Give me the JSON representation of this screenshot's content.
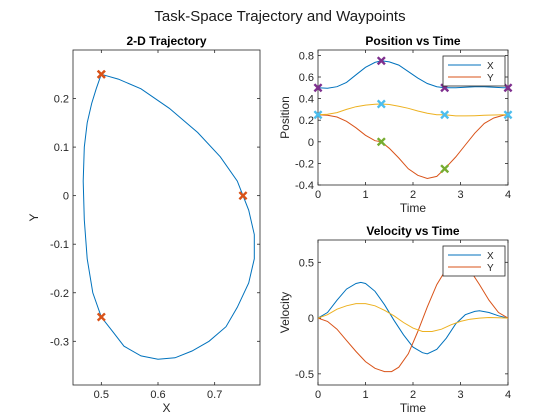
{
  "figure": {
    "title": "Task-Space Trajectory and Waypoints"
  },
  "colors": {
    "blue": "#0072BD",
    "orange": "#D95319",
    "yellow": "#EDB120",
    "purple": "#7E2F8E",
    "green": "#77AC30",
    "cyan": "#4DBEEE",
    "axis": "#262626",
    "text": "#262626"
  },
  "chart_data": [
    {
      "type": "line",
      "title": "2-D Trajectory",
      "xlabel": "X",
      "ylabel": "Y",
      "xlim": [
        0.45,
        0.78
      ],
      "ylim": [
        -0.39,
        0.3
      ],
      "xticks": [
        0.5,
        0.6,
        0.7
      ],
      "yticks": [
        -0.3,
        -0.2,
        -0.1,
        0,
        0.1,
        0.2
      ],
      "xticklabels": [
        "0.5",
        "0.6",
        "0.7"
      ],
      "yticklabels": [
        "-0.3",
        "-0.2",
        "-0.1",
        "0",
        "0.1",
        "0.2"
      ],
      "series": [
        {
          "color": "#0072BD",
          "x": [
            0.5,
            0.53,
            0.57,
            0.62,
            0.67,
            0.71,
            0.74,
            0.75,
            0.76,
            0.77,
            0.77,
            0.76,
            0.74,
            0.72,
            0.69,
            0.66,
            0.63,
            0.6,
            0.57,
            0.54,
            0.52,
            0.5,
            0.485,
            0.475,
            0.47,
            0.468,
            0.47,
            0.475,
            0.483,
            0.491,
            0.497,
            0.5
          ],
          "y": [
            0.25,
            0.24,
            0.22,
            0.18,
            0.13,
            0.08,
            0.03,
            0.0,
            -0.03,
            -0.08,
            -0.13,
            -0.18,
            -0.23,
            -0.27,
            -0.3,
            -0.32,
            -0.334,
            -0.337,
            -0.33,
            -0.31,
            -0.28,
            -0.25,
            -0.2,
            -0.13,
            -0.05,
            0.03,
            0.1,
            0.15,
            0.19,
            0.22,
            0.24,
            0.25
          ]
        }
      ],
      "waypoints": {
        "color": "#D95319",
        "x": [
          0.5,
          0.75,
          0.5,
          0.5
        ],
        "y": [
          0.25,
          0.0,
          -0.25,
          0.25
        ]
      }
    },
    {
      "type": "line",
      "title": "Position vs Time",
      "xlabel": "Time",
      "ylabel": "Position",
      "xlim": [
        0,
        4
      ],
      "ylim": [
        -0.4,
        0.85
      ],
      "xticks": [
        0,
        1,
        2,
        3,
        4
      ],
      "yticks": [
        -0.4,
        -0.2,
        0,
        0.2,
        0.4,
        0.6,
        0.8
      ],
      "xticklabels": [
        "0",
        "1",
        "2",
        "3",
        "4"
      ],
      "yticklabels": [
        "-0.4",
        "-0.2",
        "0",
        "0.2",
        "0.4",
        "0.6",
        "0.8"
      ],
      "legend": {
        "position": "top-right",
        "entries": [
          "X",
          "Y"
        ]
      },
      "series": [
        {
          "name": "X",
          "color": "#0072BD",
          "x": [
            0,
            0.2,
            0.4,
            0.6,
            0.8,
            1.0,
            1.2,
            1.333,
            1.5,
            1.7,
            1.9,
            2.1,
            2.3,
            2.5,
            2.667,
            2.9,
            3.1,
            3.3,
            3.5,
            3.7,
            3.9,
            4.0
          ],
          "y": [
            0.5,
            0.495,
            0.51,
            0.55,
            0.62,
            0.69,
            0.735,
            0.75,
            0.74,
            0.71,
            0.65,
            0.59,
            0.54,
            0.51,
            0.5,
            0.5,
            0.505,
            0.51,
            0.51,
            0.505,
            0.5,
            0.5
          ]
        },
        {
          "name": "Y",
          "color": "#D95319",
          "x": [
            0,
            0.2,
            0.4,
            0.6,
            0.8,
            1.0,
            1.2,
            1.333,
            1.5,
            1.7,
            1.9,
            2.1,
            2.3,
            2.5,
            2.667,
            2.9,
            3.1,
            3.3,
            3.5,
            3.7,
            3.9,
            4.0
          ],
          "y": [
            0.25,
            0.245,
            0.23,
            0.19,
            0.13,
            0.06,
            0.01,
            0.0,
            -0.06,
            -0.15,
            -0.25,
            -0.31,
            -0.34,
            -0.32,
            -0.25,
            -0.14,
            -0.03,
            0.08,
            0.17,
            0.22,
            0.245,
            0.25
          ]
        },
        {
          "color": "#EDB120",
          "x": [
            0,
            0.2,
            0.4,
            0.6,
            0.8,
            1.0,
            1.2,
            1.333,
            1.5,
            1.7,
            1.9,
            2.1,
            2.3,
            2.5,
            2.667,
            2.9,
            3.1,
            3.3,
            3.5,
            3.7,
            3.9,
            4.0
          ],
          "y": [
            0.25,
            0.255,
            0.27,
            0.3,
            0.325,
            0.34,
            0.348,
            0.35,
            0.345,
            0.33,
            0.31,
            0.285,
            0.265,
            0.25,
            0.25,
            0.24,
            0.24,
            0.242,
            0.245,
            0.248,
            0.25,
            0.25
          ]
        }
      ],
      "waypoints": [
        {
          "color": "#7E2F8E",
          "x": [
            0,
            1.333,
            2.667,
            4
          ],
          "y": [
            0.5,
            0.75,
            0.5,
            0.5
          ]
        },
        {
          "color": "#77AC30",
          "x": [
            1.333,
            2.667
          ],
          "y": [
            0.0,
            -0.25
          ]
        },
        {
          "color": "#4DBEEE",
          "x": [
            0,
            1.333,
            2.667,
            4
          ],
          "y": [
            0.25,
            0.35,
            0.25,
            0.25
          ]
        }
      ]
    },
    {
      "type": "line",
      "title": "Velocity vs Time",
      "xlabel": "Time",
      "ylabel": "Velocity",
      "xlim": [
        0,
        4
      ],
      "ylim": [
        -0.6,
        0.7
      ],
      "xticks": [
        0,
        1,
        2,
        3,
        4
      ],
      "yticks": [
        -0.5,
        0,
        0.5
      ],
      "xticklabels": [
        "0",
        "1",
        "2",
        "3",
        "4"
      ],
      "yticklabels": [
        "-0.5",
        "0",
        "0.5"
      ],
      "legend": {
        "position": "top-right",
        "entries": [
          "X",
          "Y"
        ]
      },
      "series": [
        {
          "name": "X",
          "color": "#0072BD",
          "x": [
            0,
            0.2,
            0.4,
            0.6,
            0.8,
            0.9,
            1.0,
            1.2,
            1.4,
            1.6,
            1.8,
            2.0,
            2.2,
            2.3,
            2.5,
            2.7,
            2.9,
            3.1,
            3.3,
            3.4,
            3.6,
            3.8,
            4.0
          ],
          "y": [
            0,
            0.05,
            0.16,
            0.26,
            0.31,
            0.32,
            0.31,
            0.24,
            0.12,
            -0.02,
            -0.15,
            -0.26,
            -0.31,
            -0.32,
            -0.28,
            -0.18,
            -0.05,
            0.03,
            0.06,
            0.065,
            0.05,
            0.02,
            0
          ]
        },
        {
          "name": "Y",
          "color": "#D95319",
          "x": [
            0,
            0.2,
            0.4,
            0.6,
            0.8,
            1.0,
            1.2,
            1.4,
            1.55,
            1.7,
            1.9,
            2.1,
            2.3,
            2.5,
            2.7,
            2.9,
            3.0,
            3.2,
            3.4,
            3.6,
            3.8,
            4.0
          ],
          "y": [
            0,
            -0.03,
            -0.1,
            -0.2,
            -0.3,
            -0.39,
            -0.45,
            -0.48,
            -0.48,
            -0.44,
            -0.32,
            -0.12,
            0.1,
            0.3,
            0.44,
            0.5,
            0.5,
            0.43,
            0.3,
            0.16,
            0.05,
            0
          ]
        },
        {
          "color": "#EDB120",
          "x": [
            0,
            0.2,
            0.4,
            0.6,
            0.8,
            1.0,
            1.2,
            1.4,
            1.6,
            1.8,
            2.0,
            2.2,
            2.4,
            2.6,
            2.8,
            3.0,
            3.2,
            3.4,
            3.6,
            3.8,
            4.0
          ],
          "y": [
            0,
            0.03,
            0.08,
            0.11,
            0.13,
            0.13,
            0.11,
            0.07,
            0.02,
            -0.04,
            -0.09,
            -0.12,
            -0.12,
            -0.1,
            -0.06,
            -0.03,
            -0.01,
            0.0,
            0.005,
            0.003,
            0
          ]
        }
      ]
    }
  ]
}
